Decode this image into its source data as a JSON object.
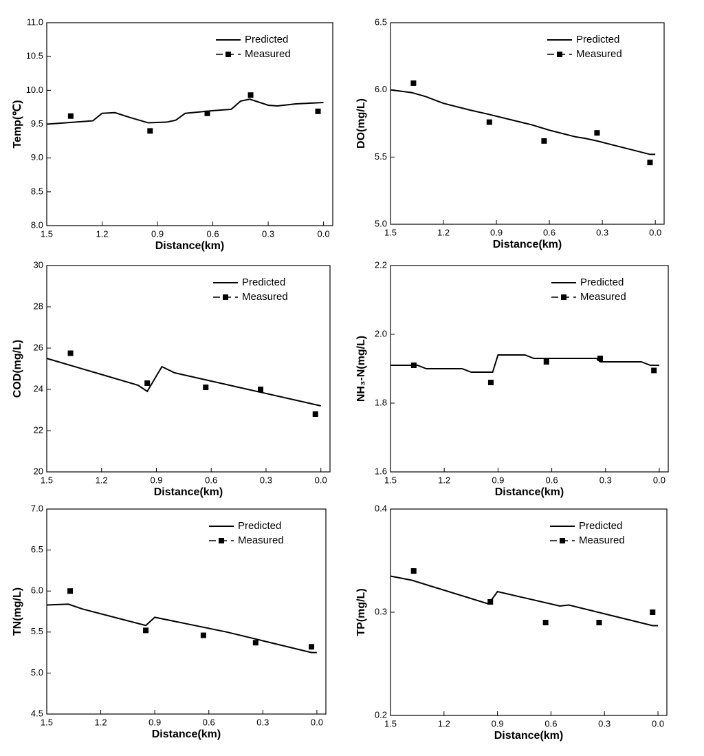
{
  "chart_data": [
    {
      "type": "line",
      "xlabel": "Distance(km)",
      "ylabel": "Temp(℃)",
      "legend": "upper right",
      "xlim": [
        1.5,
        -0.05
      ],
      "xticks": [
        1.5,
        1.2,
        0.9,
        0.6,
        0.3,
        {
          "value": 0,
          "label": "0.0"
        }
      ],
      "ylim": [
        8,
        11
      ],
      "yticks": [
        {
          "value": 8,
          "label": "8.0"
        },
        8.5,
        {
          "value": 9,
          "label": "9.0"
        },
        9.5,
        {
          "value": 10,
          "label": "10.0"
        },
        10.5,
        {
          "value": 11,
          "label": "11.0"
        }
      ],
      "series": [
        {
          "name": "Predicted",
          "color": "#000000",
          "mode": "line",
          "x": [
            1.5,
            1.25,
            1.2,
            1.13,
            1.05,
            0.95,
            0.85,
            0.8,
            0.75,
            0.6,
            0.5,
            0.45,
            0.4,
            0.3,
            0.25,
            0.15,
            0.0
          ],
          "values": [
            9.5,
            9.55,
            9.66,
            9.67,
            9.6,
            9.52,
            9.53,
            9.56,
            9.66,
            9.7,
            9.72,
            9.84,
            9.87,
            9.78,
            9.77,
            9.8,
            9.82
          ]
        },
        {
          "name": "Measured",
          "color": "#000000",
          "mode": "markers",
          "x": [
            1.37,
            0.94,
            0.63,
            0.395,
            0.03
          ],
          "values": [
            9.62,
            9.4,
            9.66,
            9.93,
            9.69
          ]
        }
      ]
    },
    {
      "type": "line",
      "xlabel": "Distance(km)",
      "ylabel": "DO(mg/L)",
      "legend": "upper right",
      "xlim": [
        1.5,
        -0.05
      ],
      "xticks": [
        1.5,
        1.2,
        0.9,
        0.6,
        0.3,
        {
          "value": 0,
          "label": "0.0"
        }
      ],
      "ylim": [
        5,
        6.5
      ],
      "yticks": [
        {
          "value": 5,
          "label": "5.0"
        },
        5.5,
        {
          "value": 6,
          "label": "6.0"
        },
        6.5
      ],
      "series": [
        {
          "name": "Predicted",
          "color": "#000000",
          "mode": "line",
          "x": [
            1.5,
            1.38,
            1.3,
            1.2,
            1.05,
            0.95,
            0.7,
            0.6,
            0.45,
            0.4,
            0.33,
            0.03,
            0.0
          ],
          "values": [
            6.0,
            5.98,
            5.95,
            5.9,
            5.85,
            5.82,
            5.74,
            5.7,
            5.65,
            5.64,
            5.62,
            5.52,
            5.52
          ]
        },
        {
          "name": "Measured",
          "color": "#000000",
          "mode": "markers",
          "x": [
            1.37,
            0.94,
            0.63,
            0.33,
            0.03
          ],
          "values": [
            6.05,
            5.76,
            5.62,
            5.68,
            5.46
          ]
        }
      ]
    },
    {
      "type": "line",
      "xlabel": "Distance(km)",
      "ylabel": "COD(mg/L)",
      "legend": "upper right",
      "xlim": [
        1.5,
        -0.05
      ],
      "xticks": [
        1.5,
        1.2,
        0.9,
        0.6,
        0.3,
        {
          "value": 0,
          "label": "0.0"
        }
      ],
      "ylim": [
        20,
        30
      ],
      "yticks": [
        20,
        22,
        24,
        26,
        28,
        30
      ],
      "series": [
        {
          "name": "Predicted",
          "color": "#000000",
          "mode": "line",
          "x": [
            1.5,
            1.0,
            0.95,
            0.87,
            0.8,
            0.4,
            0.0
          ],
          "values": [
            25.5,
            24.2,
            23.9,
            25.1,
            24.8,
            24.0,
            23.2
          ]
        },
        {
          "name": "Measured",
          "color": "#000000",
          "mode": "markers",
          "x": [
            1.37,
            0.95,
            0.63,
            0.33,
            0.03
          ],
          "values": [
            25.75,
            24.3,
            24.1,
            24.0,
            22.8
          ]
        }
      ]
    },
    {
      "type": "line",
      "xlabel": "Distance(km)",
      "ylabel": "NH₃-N(mg/L)",
      "legend": "upper right",
      "xlim": [
        1.5,
        -0.05
      ],
      "xticks": [
        1.5,
        1.2,
        0.9,
        0.6,
        0.3,
        {
          "value": 0,
          "label": "0.0"
        }
      ],
      "ylim": [
        1.6,
        2.2
      ],
      "yticks": [
        1.6,
        1.8,
        {
          "value": 2,
          "label": "2.0"
        },
        2.2
      ],
      "series": [
        {
          "name": "Predicted",
          "color": "#000000",
          "mode": "line",
          "x": [
            1.5,
            1.35,
            1.3,
            1.1,
            1.05,
            0.93,
            0.9,
            0.75,
            0.7,
            0.35,
            0.33,
            0.1,
            0.05,
            0.0
          ],
          "values": [
            1.91,
            1.91,
            1.9,
            1.9,
            1.89,
            1.89,
            1.94,
            1.94,
            1.93,
            1.93,
            1.92,
            1.92,
            1.91,
            1.91
          ]
        },
        {
          "name": "Measured",
          "color": "#000000",
          "mode": "markers",
          "x": [
            1.37,
            0.94,
            0.63,
            0.33,
            0.03
          ],
          "values": [
            1.91,
            1.86,
            1.92,
            1.93,
            1.895
          ]
        }
      ]
    },
    {
      "type": "line",
      "xlabel": "Distance(km)",
      "ylabel": "TN(mg/L)",
      "legend": "upper right",
      "xlim": [
        1.5,
        -0.05
      ],
      "xticks": [
        1.5,
        1.2,
        0.9,
        0.6,
        0.3,
        {
          "value": 0,
          "label": "0.0"
        }
      ],
      "ylim": [
        4.5,
        7
      ],
      "yticks": [
        4.5,
        {
          "value": 5,
          "label": "5.0"
        },
        5.5,
        {
          "value": 6,
          "label": "6.0"
        },
        6.5,
        {
          "value": 7,
          "label": "7.0"
        }
      ],
      "series": [
        {
          "name": "Predicted",
          "color": "#000000",
          "mode": "line",
          "x": [
            1.5,
            1.38,
            1.3,
            0.95,
            0.9,
            0.5,
            0.03,
            0.0
          ],
          "values": [
            5.83,
            5.84,
            5.78,
            5.58,
            5.68,
            5.5,
            5.25,
            5.25
          ]
        },
        {
          "name": "Measured",
          "color": "#000000",
          "mode": "markers",
          "x": [
            1.37,
            0.95,
            0.63,
            0.34,
            0.03
          ],
          "values": [
            6.0,
            5.52,
            5.46,
            5.37,
            5.32
          ]
        }
      ]
    },
    {
      "type": "line",
      "xlabel": "Distance(km)",
      "ylabel": "TP(mg/L)",
      "legend": "upper right",
      "xlim": [
        1.5,
        -0.05
      ],
      "xticks": [
        1.5,
        1.2,
        0.9,
        0.6,
        0.3,
        {
          "value": 0,
          "label": "0.0"
        }
      ],
      "ylim": [
        0.2,
        0.4
      ],
      "yticks": [
        0.2,
        0.3,
        0.4
      ],
      "series": [
        {
          "name": "Predicted",
          "color": "#000000",
          "mode": "line",
          "x": [
            1.5,
            1.38,
            0.95,
            0.9,
            0.55,
            0.5,
            0.03,
            0.0
          ],
          "values": [
            0.335,
            0.331,
            0.308,
            0.32,
            0.306,
            0.307,
            0.287,
            0.287
          ]
        },
        {
          "name": "Measured",
          "color": "#000000",
          "mode": "markers",
          "x": [
            1.37,
            0.94,
            0.63,
            0.33,
            0.03
          ],
          "values": [
            0.34,
            0.31,
            0.29,
            0.29,
            0.3
          ]
        }
      ]
    }
  ]
}
